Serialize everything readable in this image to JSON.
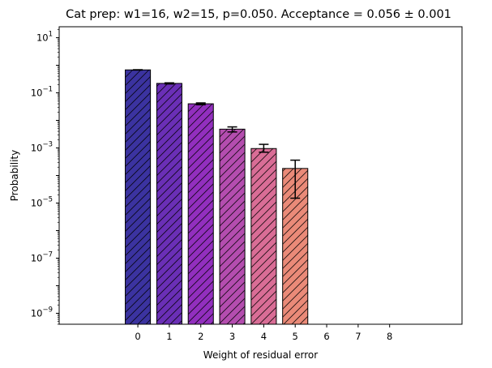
{
  "chart_data": {
    "type": "bar",
    "title": "Cat prep: w1=16, w2=15, p=0.050. Acceptance = 0.056 ± 0.001",
    "xlabel": "Weight of residual error",
    "ylabel": "Probability",
    "yscale": "log",
    "ylim": [
      4e-10,
      25
    ],
    "xlim": [
      -2.5,
      10.3
    ],
    "categories": [
      "0",
      "1",
      "2",
      "3",
      "4",
      "5",
      "6",
      "7",
      "8"
    ],
    "values": [
      0.68,
      0.22,
      0.04,
      0.0048,
      0.00095,
      0.00018,
      0,
      0,
      0
    ],
    "errors_lower": [
      0.67,
      0.21,
      0.037,
      0.0038,
      0.0007,
      1.5e-05,
      null,
      null,
      null
    ],
    "errors_upper": [
      0.69,
      0.23,
      0.043,
      0.0058,
      0.00135,
      0.00036,
      null,
      null,
      null
    ],
    "colors": [
      "#3b33a0",
      "#6a2fb6",
      "#922fbe",
      "#b44daf",
      "#d96d96",
      "#ea8a78",
      "#f2a06a",
      "#f7b862",
      "#fbd05c"
    ],
    "hatch": "diagonal",
    "yticks": [
      {
        "value": 1e-09,
        "base": "10",
        "exp": "−9"
      },
      {
        "value": 1e-07,
        "base": "10",
        "exp": "−7"
      },
      {
        "value": 1e-05,
        "base": "10",
        "exp": "−5"
      },
      {
        "value": 0.001,
        "base": "10",
        "exp": "−3"
      },
      {
        "value": 0.1,
        "base": "10",
        "exp": "−1"
      },
      {
        "value": 10,
        "base": "10",
        "exp": "1"
      }
    ],
    "grid": false,
    "legend": "none"
  }
}
